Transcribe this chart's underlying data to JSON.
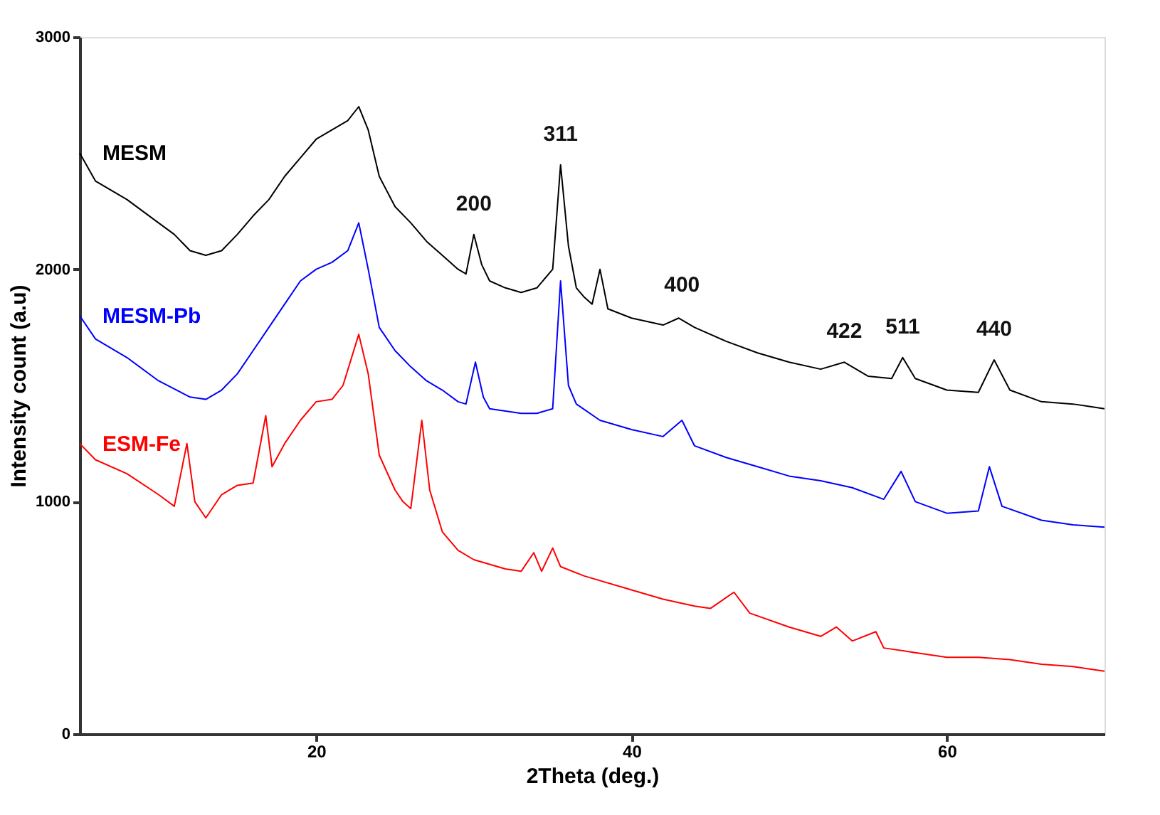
{
  "chart_data": {
    "type": "line",
    "xlabel": "2Theta (deg.)",
    "ylabel": "Intensity count (a.u)",
    "xlim": [
      5,
      70
    ],
    "ylim": [
      0,
      3000
    ],
    "xticks": [
      20,
      40,
      60
    ],
    "yticks": [
      0,
      1000,
      2000,
      3000
    ],
    "grid": false,
    "legend": false,
    "marker": "none",
    "line_style": "solid",
    "series": [
      {
        "name": "MESM",
        "color": "#000000",
        "x": [
          5,
          6,
          8,
          10,
          11,
          12,
          13,
          14,
          15,
          16,
          17,
          18,
          19,
          20,
          21,
          22,
          22.7,
          23.3,
          24,
          25,
          26,
          27,
          28,
          29,
          29.5,
          30,
          30.5,
          31,
          32,
          33,
          34,
          35,
          35.5,
          36,
          36.5,
          37,
          37.5,
          38,
          38.5,
          40,
          42,
          43,
          44,
          46,
          48,
          50,
          52,
          53.5,
          55,
          56.5,
          57.2,
          58,
          60,
          62,
          63,
          64,
          66,
          68,
          70
        ],
        "values": [
          2500,
          2380,
          2300,
          2200,
          2150,
          2080,
          2060,
          2080,
          2150,
          2230,
          2300,
          2400,
          2480,
          2560,
          2600,
          2640,
          2700,
          2600,
          2400,
          2270,
          2200,
          2120,
          2060,
          2000,
          1980,
          2150,
          2020,
          1950,
          1920,
          1900,
          1920,
          2000,
          2450,
          2100,
          1920,
          1880,
          1850,
          2000,
          1830,
          1790,
          1760,
          1790,
          1750,
          1690,
          1640,
          1600,
          1570,
          1600,
          1540,
          1530,
          1620,
          1530,
          1480,
          1470,
          1610,
          1480,
          1430,
          1420,
          1400
        ]
      },
      {
        "name": "MESM-Pb",
        "color": "#0000ff",
        "x": [
          5,
          6,
          8,
          10,
          12,
          13,
          14,
          15,
          16,
          17,
          18,
          19,
          20,
          21,
          22,
          22.7,
          23.3,
          24,
          25,
          26,
          27,
          28,
          29,
          29.5,
          30.1,
          30.6,
          31,
          33,
          34,
          35,
          35.5,
          36,
          36.5,
          38,
          40,
          42,
          43.2,
          44,
          46,
          48,
          50,
          52,
          54,
          56,
          57.1,
          58,
          60,
          62,
          62.7,
          63.5,
          66,
          68,
          70
        ],
        "values": [
          1800,
          1700,
          1620,
          1520,
          1450,
          1440,
          1480,
          1550,
          1650,
          1750,
          1850,
          1950,
          2000,
          2030,
          2080,
          2200,
          2000,
          1750,
          1650,
          1580,
          1520,
          1480,
          1430,
          1420,
          1600,
          1450,
          1400,
          1380,
          1380,
          1400,
          1950,
          1500,
          1420,
          1350,
          1310,
          1280,
          1350,
          1240,
          1190,
          1150,
          1110,
          1090,
          1060,
          1010,
          1130,
          1000,
          950,
          960,
          1150,
          980,
          920,
          900,
          890
        ]
      },
      {
        "name": "ESM-Fe",
        "color": "#ff0000",
        "x": [
          5,
          6,
          8,
          10,
          11,
          11.8,
          12.3,
          13,
          14,
          15,
          16,
          16.8,
          17.2,
          18,
          19,
          20,
          21,
          21.7,
          22.7,
          23.3,
          24,
          25,
          25.5,
          26,
          26.7,
          27.2,
          28,
          29,
          30,
          32,
          33,
          33.8,
          34.3,
          35,
          35.5,
          37,
          40,
          42,
          44,
          45,
          46.5,
          47.5,
          50,
          52,
          53,
          54,
          55.5,
          56,
          58,
          60,
          62,
          64,
          66,
          68,
          70
        ],
        "values": [
          1250,
          1180,
          1120,
          1030,
          980,
          1250,
          1000,
          930,
          1030,
          1070,
          1080,
          1370,
          1150,
          1250,
          1350,
          1430,
          1440,
          1500,
          1720,
          1550,
          1200,
          1050,
          1000,
          970,
          1350,
          1050,
          870,
          790,
          750,
          710,
          700,
          780,
          700,
          800,
          720,
          680,
          620,
          580,
          550,
          540,
          610,
          520,
          460,
          420,
          460,
          400,
          440,
          370,
          350,
          330,
          330,
          320,
          300,
          290,
          270
        ]
      }
    ],
    "annotations": [
      {
        "text": "200",
        "x": 30,
        "y": 2150
      },
      {
        "text": "311",
        "x": 35.5,
        "y": 2450
      },
      {
        "text": "400",
        "x": 43.2,
        "y": 1800
      },
      {
        "text": "422",
        "x": 53.5,
        "y": 1600
      },
      {
        "text": "511",
        "x": 57.2,
        "y": 1620
      },
      {
        "text": "440",
        "x": 63,
        "y": 1610
      }
    ]
  }
}
